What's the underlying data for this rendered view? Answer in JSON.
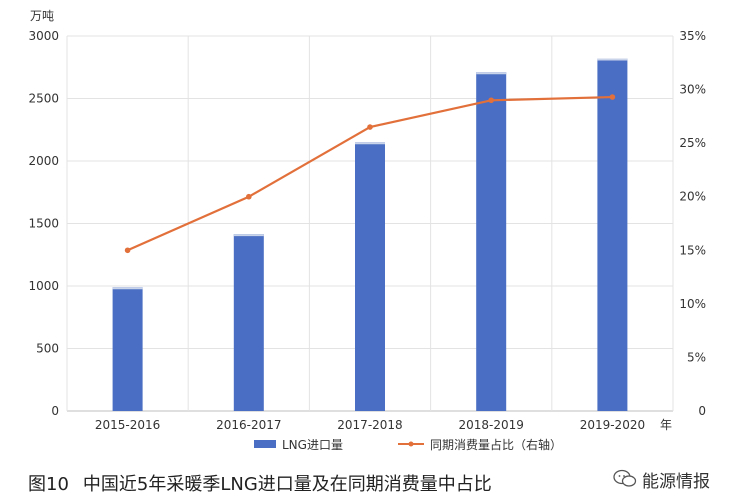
{
  "chart_data": {
    "type": "bar",
    "y_unit_label": "万吨",
    "x_unit_label": "年",
    "categories": [
      "2015-2016",
      "2016-2017",
      "2017-2018",
      "2018-2019",
      "2019-2020"
    ],
    "series": [
      {
        "name": "LNG进口量",
        "type": "bar",
        "axis": "left",
        "color": "#4a6ec3",
        "values": [
          990,
          1415,
          2150,
          2710,
          2820
        ]
      },
      {
        "name": "同期消费量占比（右轴）",
        "type": "line",
        "axis": "right",
        "color": "#e2703b",
        "values": [
          15.0,
          20.0,
          26.5,
          29.0,
          29.3
        ]
      }
    ],
    "left_axis": {
      "ylim": [
        0,
        3000
      ],
      "ticks": [
        0,
        500,
        1000,
        1500,
        2000,
        2500,
        3000
      ]
    },
    "right_axis": {
      "ylim": [
        0,
        35
      ],
      "ticks": [
        "0",
        "5%",
        "10%",
        "15%",
        "20%",
        "25%",
        "30%",
        "35%"
      ]
    },
    "grid": true,
    "legend_position": "bottom"
  },
  "caption": {
    "figure_number": "图10",
    "title": "中国近5年采暖季LNG进口量及在同期消费量中占比"
  },
  "watermark": {
    "text": "能源情报",
    "icon": "wechat-icon"
  }
}
